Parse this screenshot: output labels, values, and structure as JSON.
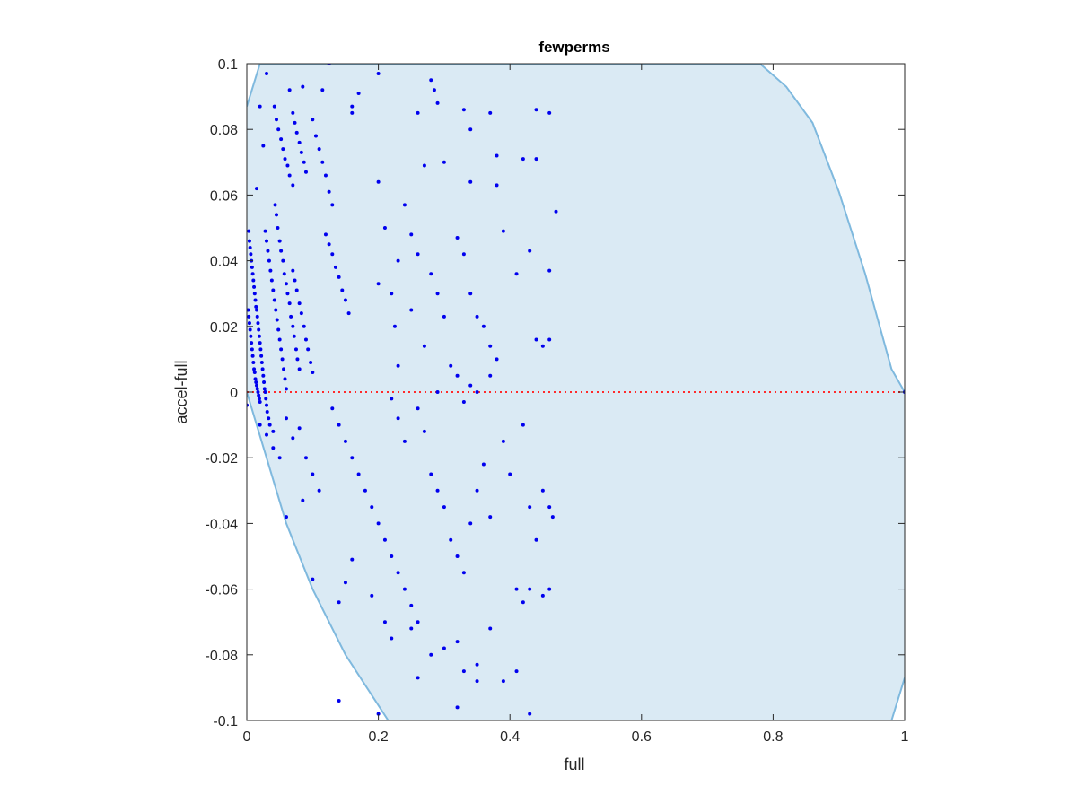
{
  "chart_data": {
    "type": "scatter",
    "title": "fewperms",
    "xlabel": "full",
    "ylabel": "accel-full",
    "xlim": [
      0,
      1
    ],
    "ylim": [
      -0.1,
      0.1
    ],
    "x_ticks": [
      "0",
      "0.2",
      "0.4",
      "0.6",
      "0.8",
      "1"
    ],
    "y_ticks": [
      "-0.1",
      "-0.08",
      "-0.06",
      "-0.04",
      "-0.02",
      "0",
      "0.02",
      "0.04",
      "0.06",
      "0.08",
      "0.1"
    ],
    "grid": false,
    "colors": {
      "points": "#0000ee",
      "region_fill": "#daeaf4",
      "region_edge": "#7fb9de",
      "zero_line": "#ff2a2a",
      "axes": "#262626"
    },
    "region_boundary": {
      "upper": [
        [
          0,
          0.087
        ],
        [
          0.02,
          0.1
        ],
        [
          0.78,
          0.1
        ],
        [
          0.82,
          0.093
        ],
        [
          0.86,
          0.082
        ],
        [
          0.9,
          0.061
        ],
        [
          0.94,
          0.036
        ],
        [
          0.98,
          0.007
        ],
        [
          1,
          0
        ]
      ],
      "lower": [
        [
          0,
          0
        ],
        [
          0.03,
          -0.02
        ],
        [
          0.06,
          -0.04
        ],
        [
          0.1,
          -0.06
        ],
        [
          0.15,
          -0.08
        ],
        [
          0.215,
          -0.1
        ],
        [
          0.98,
          -0.1
        ],
        [
          1,
          -0.087
        ]
      ]
    },
    "zero_line": {
      "y": 0,
      "style": "dotted"
    },
    "points": [
      [
        0.002,
        0.025
      ],
      [
        0.003,
        0.023
      ],
      [
        0.004,
        0.021
      ],
      [
        0.005,
        0.019
      ],
      [
        0.006,
        0.017
      ],
      [
        0.007,
        0.015
      ],
      [
        0.008,
        0.013
      ],
      [
        0.009,
        0.011
      ],
      [
        0.01,
        0.009
      ],
      [
        0.011,
        0.007
      ],
      [
        0.012,
        0.006
      ],
      [
        0.013,
        0.004
      ],
      [
        0.014,
        0.003
      ],
      [
        0.015,
        0.002
      ],
      [
        0.016,
        0.001
      ],
      [
        0.017,
        0.0
      ],
      [
        0.018,
        -0.001
      ],
      [
        0.019,
        -0.002
      ],
      [
        0.02,
        -0.003
      ],
      [
        0.003,
        0.049
      ],
      [
        0.004,
        0.046
      ],
      [
        0.005,
        0.044
      ],
      [
        0.006,
        0.042
      ],
      [
        0.007,
        0.04
      ],
      [
        0.008,
        0.038
      ],
      [
        0.009,
        0.036
      ],
      [
        0.01,
        0.034
      ],
      [
        0.011,
        0.032
      ],
      [
        0.012,
        0.03
      ],
      [
        0.013,
        0.028
      ],
      [
        0.014,
        0.026
      ],
      [
        0.015,
        0.025
      ],
      [
        0.016,
        0.023
      ],
      [
        0.017,
        0.021
      ],
      [
        0.018,
        0.019
      ],
      [
        0.019,
        0.017
      ],
      [
        0.02,
        0.015
      ],
      [
        0.021,
        0.013
      ],
      [
        0.022,
        0.011
      ],
      [
        0.023,
        0.009
      ],
      [
        0.024,
        0.007
      ],
      [
        0.025,
        0.005
      ],
      [
        0.026,
        0.003
      ],
      [
        0.027,
        0.001
      ],
      [
        0.028,
        0.0
      ],
      [
        0.029,
        -0.002
      ],
      [
        0.03,
        -0.004
      ],
      [
        0.031,
        -0.006
      ],
      [
        0.033,
        -0.008
      ],
      [
        0.035,
        -0.01
      ],
      [
        0.028,
        0.049
      ],
      [
        0.03,
        0.046
      ],
      [
        0.032,
        0.043
      ],
      [
        0.034,
        0.04
      ],
      [
        0.036,
        0.037
      ],
      [
        0.038,
        0.034
      ],
      [
        0.04,
        0.031
      ],
      [
        0.042,
        0.028
      ],
      [
        0.044,
        0.025
      ],
      [
        0.046,
        0.022
      ],
      [
        0.048,
        0.019
      ],
      [
        0.05,
        0.016
      ],
      [
        0.052,
        0.013
      ],
      [
        0.054,
        0.01
      ],
      [
        0.056,
        0.007
      ],
      [
        0.058,
        0.004
      ],
      [
        0.06,
        0.001
      ],
      [
        0.043,
        0.057
      ],
      [
        0.045,
        0.054
      ],
      [
        0.047,
        0.05
      ],
      [
        0.05,
        0.046
      ],
      [
        0.052,
        0.043
      ],
      [
        0.055,
        0.04
      ],
      [
        0.057,
        0.036
      ],
      [
        0.06,
        0.033
      ],
      [
        0.062,
        0.03
      ],
      [
        0.065,
        0.027
      ],
      [
        0.067,
        0.023
      ],
      [
        0.07,
        0.02
      ],
      [
        0.072,
        0.017
      ],
      [
        0.075,
        0.013
      ],
      [
        0.077,
        0.01
      ],
      [
        0.08,
        0.007
      ],
      [
        0.07,
        0.037
      ],
      [
        0.073,
        0.034
      ],
      [
        0.076,
        0.031
      ],
      [
        0.08,
        0.027
      ],
      [
        0.083,
        0.024
      ],
      [
        0.087,
        0.02
      ],
      [
        0.09,
        0.016
      ],
      [
        0.093,
        0.013
      ],
      [
        0.097,
        0.009
      ],
      [
        0.1,
        0.006
      ],
      [
        0.042,
        0.087
      ],
      [
        0.045,
        0.083
      ],
      [
        0.048,
        0.08
      ],
      [
        0.052,
        0.077
      ],
      [
        0.055,
        0.074
      ],
      [
        0.058,
        0.071
      ],
      [
        0.062,
        0.069
      ],
      [
        0.065,
        0.066
      ],
      [
        0.07,
        0.063
      ],
      [
        0.07,
        0.085
      ],
      [
        0.073,
        0.082
      ],
      [
        0.076,
        0.079
      ],
      [
        0.08,
        0.076
      ],
      [
        0.083,
        0.073
      ],
      [
        0.087,
        0.07
      ],
      [
        0.09,
        0.067
      ],
      [
        0.1,
        0.083
      ],
      [
        0.105,
        0.078
      ],
      [
        0.11,
        0.074
      ],
      [
        0.115,
        0.07
      ],
      [
        0.12,
        0.066
      ],
      [
        0.125,
        0.061
      ],
      [
        0.13,
        0.057
      ],
      [
        0.12,
        0.048
      ],
      [
        0.125,
        0.045
      ],
      [
        0.13,
        0.042
      ],
      [
        0.135,
        0.038
      ],
      [
        0.14,
        0.035
      ],
      [
        0.145,
        0.031
      ],
      [
        0.15,
        0.028
      ],
      [
        0.155,
        0.024
      ],
      [
        0.02,
        0.087
      ],
      [
        0.025,
        0.075
      ],
      [
        0.015,
        0.062
      ],
      [
        0.03,
        0.097
      ],
      [
        0.065,
        0.092
      ],
      [
        0.085,
        0.093
      ],
      [
        0.115,
        0.092
      ],
      [
        0.125,
        0.1
      ],
      [
        0.16,
        0.087
      ],
      [
        0.16,
        0.085
      ],
      [
        0.17,
        0.091
      ],
      [
        0.2,
        0.097
      ],
      [
        0.26,
        0.085
      ],
      [
        0.28,
        0.095
      ],
      [
        0.285,
        0.092
      ],
      [
        0.29,
        0.088
      ],
      [
        0.33,
        0.086
      ],
      [
        0.34,
        0.08
      ],
      [
        0.37,
        0.085
      ],
      [
        0.42,
        0.071
      ],
      [
        0.44,
        0.071
      ],
      [
        0.44,
        0.086
      ],
      [
        0.46,
        0.085
      ],
      [
        0.2,
        0.064
      ],
      [
        0.24,
        0.057
      ],
      [
        0.27,
        0.069
      ],
      [
        0.3,
        0.07
      ],
      [
        0.34,
        0.064
      ],
      [
        0.38,
        0.072
      ],
      [
        0.38,
        0.063
      ],
      [
        0.39,
        0.049
      ],
      [
        0.41,
        0.036
      ],
      [
        0.43,
        0.043
      ],
      [
        0.46,
        0.037
      ],
      [
        0.47,
        0.055
      ],
      [
        0.2,
        0.033
      ],
      [
        0.21,
        0.05
      ],
      [
        0.23,
        0.04
      ],
      [
        0.25,
        0.048
      ],
      [
        0.26,
        0.042
      ],
      [
        0.28,
        0.036
      ],
      [
        0.29,
        0.03
      ],
      [
        0.3,
        0.023
      ],
      [
        0.32,
        0.047
      ],
      [
        0.33,
        0.042
      ],
      [
        0.34,
        0.03
      ],
      [
        0.35,
        0.023
      ],
      [
        0.36,
        0.02
      ],
      [
        0.37,
        0.014
      ],
      [
        0.44,
        0.016
      ],
      [
        0.45,
        0.014
      ],
      [
        0.46,
        0.016
      ],
      [
        0.22,
        0.03
      ],
      [
        0.225,
        0.02
      ],
      [
        0.23,
        0.008
      ],
      [
        0.25,
        0.025
      ],
      [
        0.27,
        0.014
      ],
      [
        0.29,
        0.0
      ],
      [
        0.31,
        0.008
      ],
      [
        0.32,
        0.005
      ],
      [
        0.33,
        -0.003
      ],
      [
        0.34,
        0.002
      ],
      [
        0.35,
        0.0
      ],
      [
        0.37,
        0.005
      ],
      [
        0.38,
        0.01
      ],
      [
        0.0,
        -0.004
      ],
      [
        0.02,
        -0.01
      ],
      [
        0.03,
        -0.013
      ],
      [
        0.04,
        -0.017
      ],
      [
        0.05,
        -0.02
      ],
      [
        0.04,
        -0.012
      ],
      [
        0.06,
        -0.008
      ],
      [
        0.07,
        -0.014
      ],
      [
        0.08,
        -0.011
      ],
      [
        0.09,
        -0.02
      ],
      [
        0.1,
        -0.025
      ],
      [
        0.11,
        -0.03
      ],
      [
        0.13,
        -0.005
      ],
      [
        0.14,
        -0.01
      ],
      [
        0.15,
        -0.015
      ],
      [
        0.16,
        -0.02
      ],
      [
        0.17,
        -0.025
      ],
      [
        0.18,
        -0.03
      ],
      [
        0.19,
        -0.035
      ],
      [
        0.2,
        -0.04
      ],
      [
        0.21,
        -0.045
      ],
      [
        0.22,
        -0.05
      ],
      [
        0.23,
        -0.055
      ],
      [
        0.24,
        -0.06
      ],
      [
        0.25,
        -0.065
      ],
      [
        0.26,
        -0.07
      ],
      [
        0.22,
        -0.002
      ],
      [
        0.23,
        -0.008
      ],
      [
        0.24,
        -0.015
      ],
      [
        0.26,
        -0.005
      ],
      [
        0.27,
        -0.012
      ],
      [
        0.28,
        -0.025
      ],
      [
        0.29,
        -0.03
      ],
      [
        0.3,
        -0.035
      ],
      [
        0.31,
        -0.045
      ],
      [
        0.32,
        -0.05
      ],
      [
        0.33,
        -0.055
      ],
      [
        0.34,
        -0.04
      ],
      [
        0.35,
        -0.03
      ],
      [
        0.36,
        -0.022
      ],
      [
        0.37,
        -0.038
      ],
      [
        0.39,
        -0.015
      ],
      [
        0.4,
        -0.025
      ],
      [
        0.42,
        -0.01
      ],
      [
        0.43,
        -0.035
      ],
      [
        0.44,
        -0.045
      ],
      [
        0.45,
        -0.03
      ],
      [
        0.46,
        -0.035
      ],
      [
        0.465,
        -0.038
      ],
      [
        0.46,
        -0.06
      ],
      [
        0.45,
        -0.062
      ],
      [
        0.14,
        -0.064
      ],
      [
        0.15,
        -0.058
      ],
      [
        0.16,
        -0.051
      ],
      [
        0.19,
        -0.062
      ],
      [
        0.21,
        -0.07
      ],
      [
        0.22,
        -0.075
      ],
      [
        0.25,
        -0.072
      ],
      [
        0.28,
        -0.08
      ],
      [
        0.3,
        -0.078
      ],
      [
        0.32,
        -0.076
      ],
      [
        0.33,
        -0.085
      ],
      [
        0.35,
        -0.083
      ],
      [
        0.37,
        -0.072
      ],
      [
        0.39,
        -0.088
      ],
      [
        0.41,
        -0.06
      ],
      [
        0.42,
        -0.064
      ],
      [
        0.43,
        -0.06
      ],
      [
        0.26,
        -0.087
      ],
      [
        0.32,
        -0.096
      ],
      [
        0.35,
        -0.088
      ],
      [
        0.41,
        -0.085
      ],
      [
        0.43,
        -0.098
      ],
      [
        0.14,
        -0.094
      ],
      [
        0.2,
        -0.098
      ],
      [
        0.1,
        -0.057
      ],
      [
        0.06,
        -0.038
      ],
      [
        0.085,
        -0.033
      ],
      [
        1.0,
        0.0
      ]
    ]
  }
}
